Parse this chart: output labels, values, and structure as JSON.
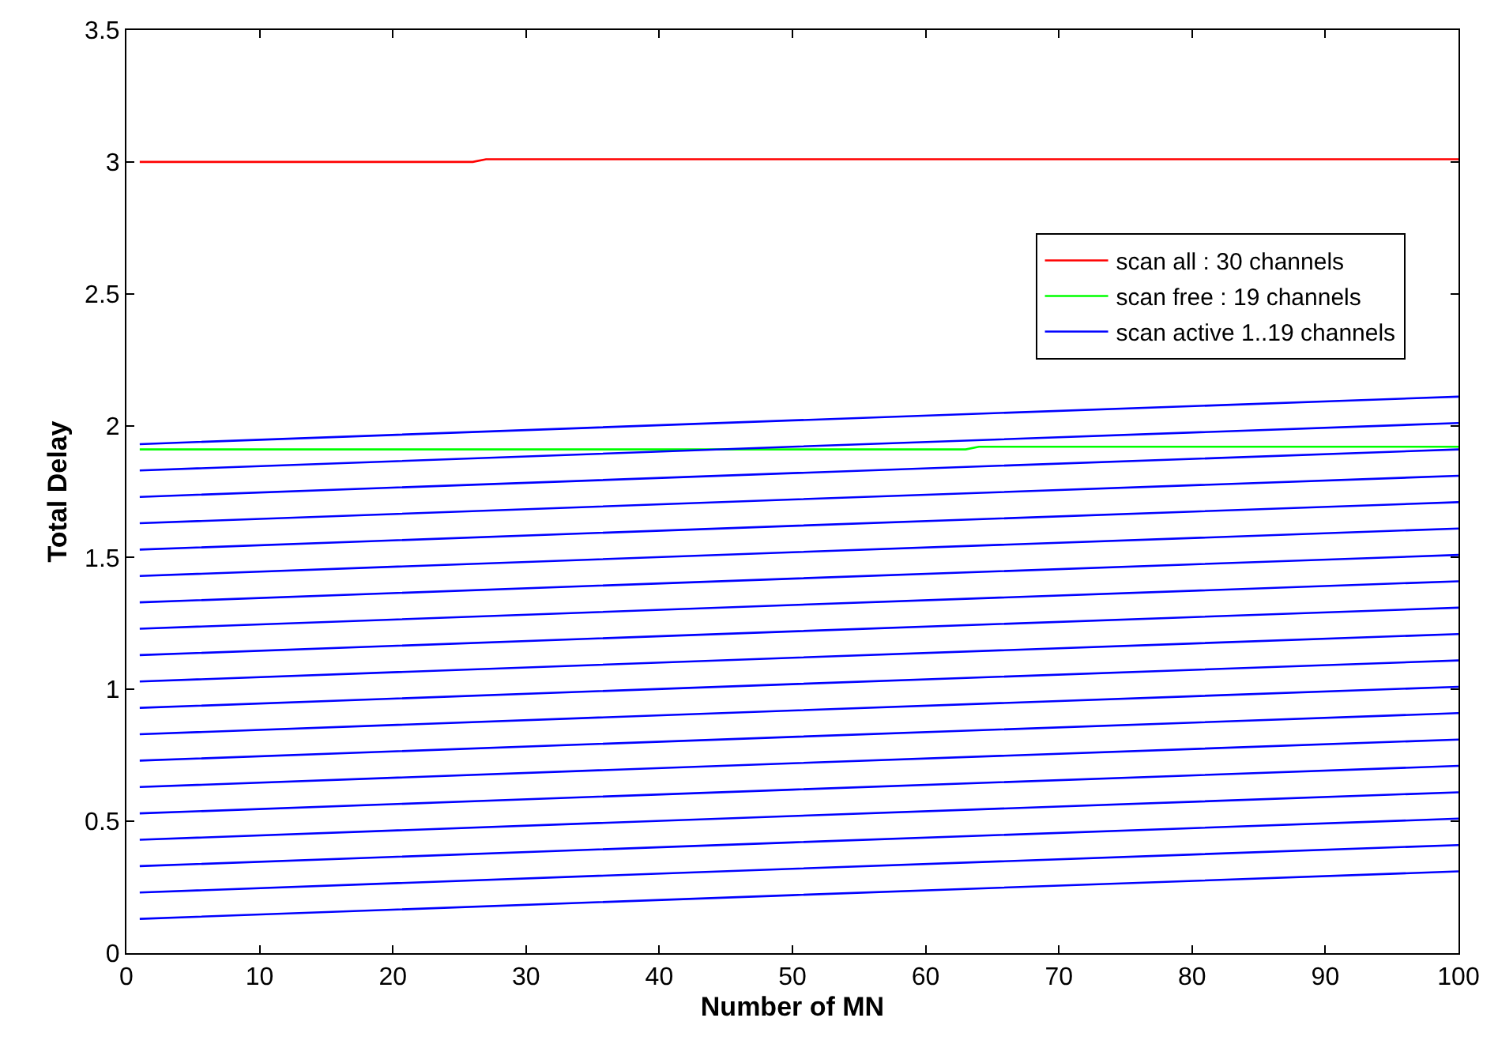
{
  "chart_data": {
    "type": "line",
    "xlabel": "Number of MN",
    "ylabel": "Total Delay",
    "xlim": [
      0,
      100
    ],
    "ylim": [
      0,
      3.5
    ],
    "xticks": [
      0,
      10,
      20,
      30,
      40,
      50,
      60,
      70,
      80,
      90,
      100
    ],
    "yticks": [
      0,
      0.5,
      1,
      1.5,
      2,
      2.5,
      3,
      3.5
    ],
    "legend": "top right",
    "marker": "none",
    "line_style": "solid",
    "series": [
      {
        "name": "scan all : 30 channels",
        "color": "#ff0000",
        "x": [
          1,
          26,
          27,
          100
        ],
        "values": [
          3.0,
          3.0,
          3.01,
          3.01
        ]
      },
      {
        "name": "scan free : 19 channels",
        "color": "#00ff00",
        "x": [
          1,
          63,
          64,
          100
        ],
        "values": [
          1.91,
          1.91,
          1.92,
          1.92
        ]
      },
      {
        "name": "scan active 1..19 channels",
        "color": "#0000ff",
        "x": [
          1,
          50,
          100
        ],
        "values": [
          0.13,
          0.22,
          0.31
        ]
      },
      {
        "color": "#0000ff",
        "x": [
          1,
          50,
          100
        ],
        "values": [
          0.23,
          0.32,
          0.41
        ]
      },
      {
        "color": "#0000ff",
        "x": [
          1,
          50,
          100
        ],
        "values": [
          0.33,
          0.42,
          0.51
        ]
      },
      {
        "color": "#0000ff",
        "x": [
          1,
          50,
          100
        ],
        "values": [
          0.43,
          0.52,
          0.61
        ]
      },
      {
        "color": "#0000ff",
        "x": [
          1,
          50,
          100
        ],
        "values": [
          0.53,
          0.62,
          0.71
        ]
      },
      {
        "color": "#0000ff",
        "x": [
          1,
          50,
          100
        ],
        "values": [
          0.63,
          0.72,
          0.81
        ]
      },
      {
        "color": "#0000ff",
        "x": [
          1,
          50,
          100
        ],
        "values": [
          0.73,
          0.82,
          0.91
        ]
      },
      {
        "color": "#0000ff",
        "x": [
          1,
          50,
          100
        ],
        "values": [
          0.83,
          0.92,
          1.01
        ]
      },
      {
        "color": "#0000ff",
        "x": [
          1,
          50,
          100
        ],
        "values": [
          0.93,
          1.02,
          1.11
        ]
      },
      {
        "color": "#0000ff",
        "x": [
          1,
          50,
          100
        ],
        "values": [
          1.03,
          1.12,
          1.21
        ]
      },
      {
        "color": "#0000ff",
        "x": [
          1,
          50,
          100
        ],
        "values": [
          1.13,
          1.22,
          1.31
        ]
      },
      {
        "color": "#0000ff",
        "x": [
          1,
          50,
          100
        ],
        "values": [
          1.23,
          1.32,
          1.41
        ]
      },
      {
        "color": "#0000ff",
        "x": [
          1,
          50,
          100
        ],
        "values": [
          1.33,
          1.42,
          1.51
        ]
      },
      {
        "color": "#0000ff",
        "x": [
          1,
          50,
          100
        ],
        "values": [
          1.43,
          1.52,
          1.61
        ]
      },
      {
        "color": "#0000ff",
        "x": [
          1,
          50,
          100
        ],
        "values": [
          1.53,
          1.62,
          1.71
        ]
      },
      {
        "color": "#0000ff",
        "x": [
          1,
          50,
          100
        ],
        "values": [
          1.63,
          1.72,
          1.81
        ]
      },
      {
        "color": "#0000ff",
        "x": [
          1,
          50,
          100
        ],
        "values": [
          1.73,
          1.82,
          1.91
        ]
      },
      {
        "color": "#0000ff",
        "x": [
          1,
          50,
          100
        ],
        "values": [
          1.83,
          1.92,
          2.01
        ]
      },
      {
        "color": "#0000ff",
        "x": [
          1,
          50,
          100
        ],
        "values": [
          1.93,
          2.02,
          2.11
        ]
      }
    ]
  }
}
